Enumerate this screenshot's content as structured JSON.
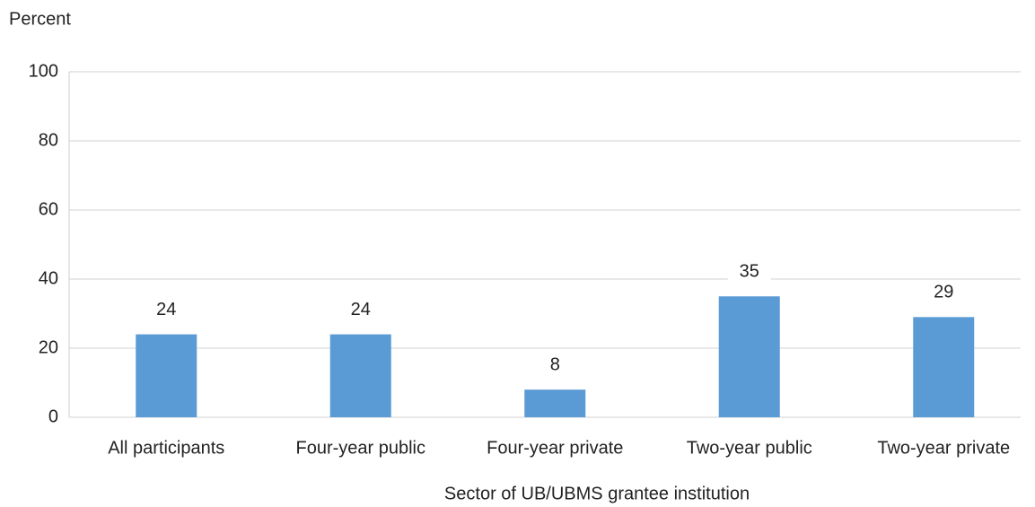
{
  "chart_data": {
    "type": "bar",
    "y_label": "Percent",
    "x_label": "Sector of UB/UBMS grantee institution",
    "categories": [
      "All participants",
      "Four-year public",
      "Four-year private",
      "Two-year public",
      "Two-year private"
    ],
    "values": [
      24,
      24,
      8,
      35,
      29
    ],
    "color": "#5b9bd5",
    "ylim": [
      0,
      100
    ],
    "yticks": [
      0,
      20,
      40,
      60,
      80,
      100
    ],
    "grid": true
  }
}
